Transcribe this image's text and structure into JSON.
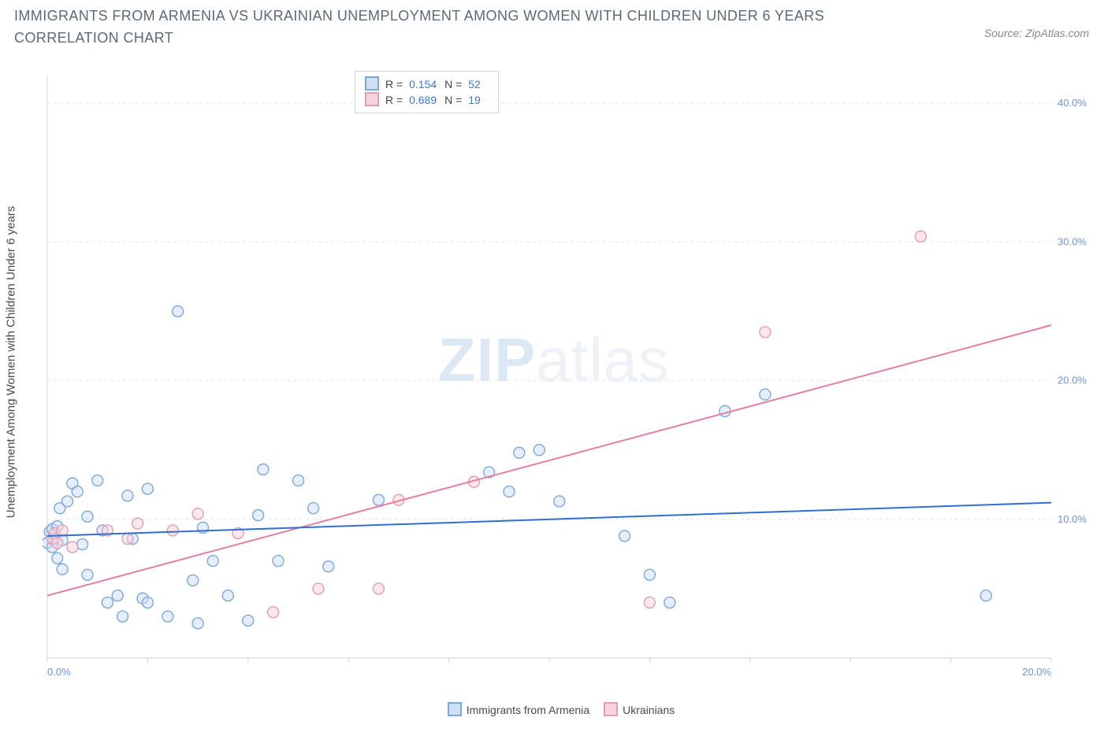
{
  "title": "IMMIGRANTS FROM ARMENIA VS UKRAINIAN UNEMPLOYMENT AMONG WOMEN WITH CHILDREN UNDER 6 YEARS CORRELATION CHART",
  "source_label": "Source: ZipAtlas.com",
  "y_axis_label": "Unemployment Among Women with Children Under 6 years",
  "watermark_bold": "ZIP",
  "watermark_thin": "atlas",
  "colors": {
    "series_a_fill": "#cfe0f5",
    "series_a_stroke": "#7ba8de",
    "series_a_line": "#2f6fd0",
    "series_b_fill": "#f6d6de",
    "series_b_stroke": "#e59cb0",
    "series_b_line": "#e77ca0",
    "grid": "#e6e6e6",
    "axis": "#d5d5d5",
    "tick_text": "#6b94d6",
    "title_text": "#5a6a7a"
  },
  "chart": {
    "type": "scatter",
    "xlim": [
      0,
      20
    ],
    "ylim": [
      0,
      42
    ],
    "x_ticks": [
      0,
      2,
      4,
      6,
      8,
      10,
      12,
      14,
      16,
      18,
      20
    ],
    "x_tick_labels": [
      "0.0%",
      "",
      "",
      "",
      "",
      "",
      "",
      "",
      "",
      "",
      "20.0%"
    ],
    "y_ticks": [
      10,
      20,
      30,
      40
    ],
    "y_tick_labels": [
      "10.0%",
      "20.0%",
      "30.0%",
      "40.0%"
    ],
    "marker_radius": 7,
    "marker_opacity": 0.55,
    "line_width": 2,
    "grid_dash": "4 4",
    "y_tick_fontsize": 13,
    "x_tick_fontsize": 13
  },
  "info_box": {
    "rows": [
      {
        "swatch": "a",
        "r_label": "R =",
        "r_value": "0.154",
        "n_label": "N =",
        "n_value": "52"
      },
      {
        "swatch": "b",
        "r_label": "R =",
        "r_value": "0.689",
        "n_label": "N =",
        "n_value": "19"
      }
    ]
  },
  "x_legend": {
    "items": [
      {
        "swatch": "a",
        "label": "Immigrants from Armenia"
      },
      {
        "swatch": "b",
        "label": "Ukrainians"
      }
    ]
  },
  "series_a": {
    "name": "Immigrants from Armenia",
    "trend": {
      "x1": 0,
      "y1": 8.8,
      "x2": 20,
      "y2": 11.2
    },
    "points": [
      [
        0.0,
        8.3
      ],
      [
        0.05,
        9.1
      ],
      [
        0.1,
        8.0
      ],
      [
        0.1,
        9.3
      ],
      [
        0.15,
        8.6
      ],
      [
        0.2,
        9.5
      ],
      [
        0.2,
        7.2
      ],
      [
        0.25,
        10.8
      ],
      [
        0.3,
        8.5
      ],
      [
        0.3,
        6.4
      ],
      [
        0.4,
        11.3
      ],
      [
        0.5,
        12.6
      ],
      [
        0.6,
        12.0
      ],
      [
        0.7,
        8.2
      ],
      [
        0.8,
        6.0
      ],
      [
        0.8,
        10.2
      ],
      [
        1.0,
        12.8
      ],
      [
        1.1,
        9.2
      ],
      [
        1.2,
        4.0
      ],
      [
        1.4,
        4.5
      ],
      [
        1.5,
        3.0
      ],
      [
        1.6,
        11.7
      ],
      [
        1.7,
        8.6
      ],
      [
        1.9,
        4.3
      ],
      [
        2.0,
        12.2
      ],
      [
        2.0,
        4.0
      ],
      [
        2.4,
        3.0
      ],
      [
        2.6,
        25.0
      ],
      [
        2.9,
        5.6
      ],
      [
        3.0,
        2.5
      ],
      [
        3.1,
        9.4
      ],
      [
        3.3,
        7.0
      ],
      [
        3.6,
        4.5
      ],
      [
        4.0,
        2.7
      ],
      [
        4.2,
        10.3
      ],
      [
        4.3,
        13.6
      ],
      [
        4.6,
        7.0
      ],
      [
        5.0,
        12.8
      ],
      [
        5.3,
        10.8
      ],
      [
        5.6,
        6.6
      ],
      [
        6.6,
        11.4
      ],
      [
        8.8,
        13.4
      ],
      [
        9.2,
        12.0
      ],
      [
        9.4,
        14.8
      ],
      [
        9.8,
        15.0
      ],
      [
        10.2,
        11.3
      ],
      [
        11.5,
        8.8
      ],
      [
        12.0,
        6.0
      ],
      [
        12.4,
        4.0
      ],
      [
        13.5,
        17.8
      ],
      [
        14.3,
        19.0
      ],
      [
        18.7,
        4.5
      ]
    ]
  },
  "series_b": {
    "name": "Ukrainians",
    "trend": {
      "x1": 0,
      "y1": 4.5,
      "x2": 20,
      "y2": 24.0
    },
    "points": [
      [
        0.1,
        8.6
      ],
      [
        0.15,
        9.0
      ],
      [
        0.2,
        8.3
      ],
      [
        0.3,
        9.2
      ],
      [
        0.5,
        8.0
      ],
      [
        1.2,
        9.2
      ],
      [
        1.6,
        8.6
      ],
      [
        1.8,
        9.7
      ],
      [
        2.5,
        9.2
      ],
      [
        3.0,
        10.4
      ],
      [
        3.8,
        9.0
      ],
      [
        4.5,
        3.3
      ],
      [
        5.4,
        5.0
      ],
      [
        6.6,
        5.0
      ],
      [
        7.0,
        11.4
      ],
      [
        8.5,
        12.7
      ],
      [
        12.0,
        4.0
      ],
      [
        14.3,
        23.5
      ],
      [
        17.4,
        30.4
      ]
    ]
  }
}
